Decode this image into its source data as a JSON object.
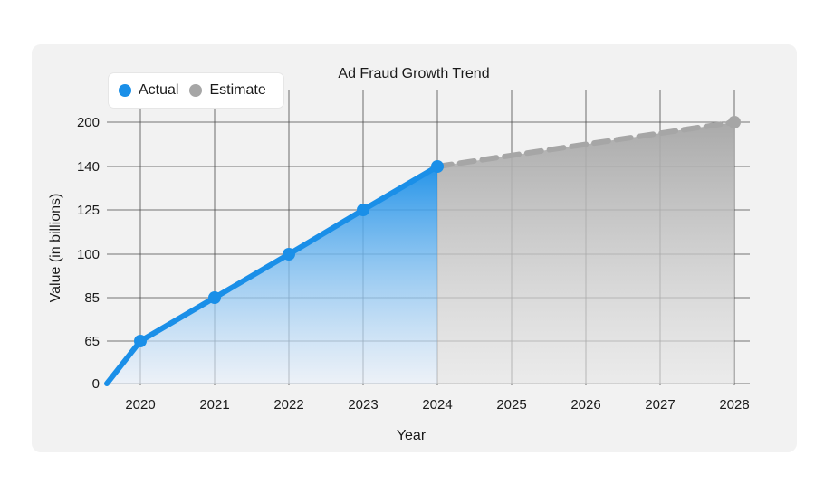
{
  "chart_data": {
    "type": "line",
    "title": "Ad Fraud Growth Trend",
    "xlabel": "Year",
    "ylabel": "Value (in billions)",
    "categories": [
      "2020",
      "2021",
      "2022",
      "2023",
      "2024",
      "2025",
      "2026",
      "2027",
      "2028"
    ],
    "y_ticks": [
      "0",
      "65",
      "85",
      "100",
      "125",
      "140",
      "200"
    ],
    "series": [
      {
        "name": "Actual",
        "color": "#1a8fe8",
        "style": "solid",
        "x": [
          "2020",
          "2021",
          "2022",
          "2023",
          "2024"
        ],
        "values": [
          65,
          85,
          100,
          125,
          140
        ]
      },
      {
        "name": "Estimate",
        "color": "#a6a6a6",
        "style": "dashed",
        "x": [
          "2024",
          "2028"
        ],
        "values": [
          140,
          200
        ]
      }
    ],
    "grid": true,
    "legend_position": "top-left"
  }
}
